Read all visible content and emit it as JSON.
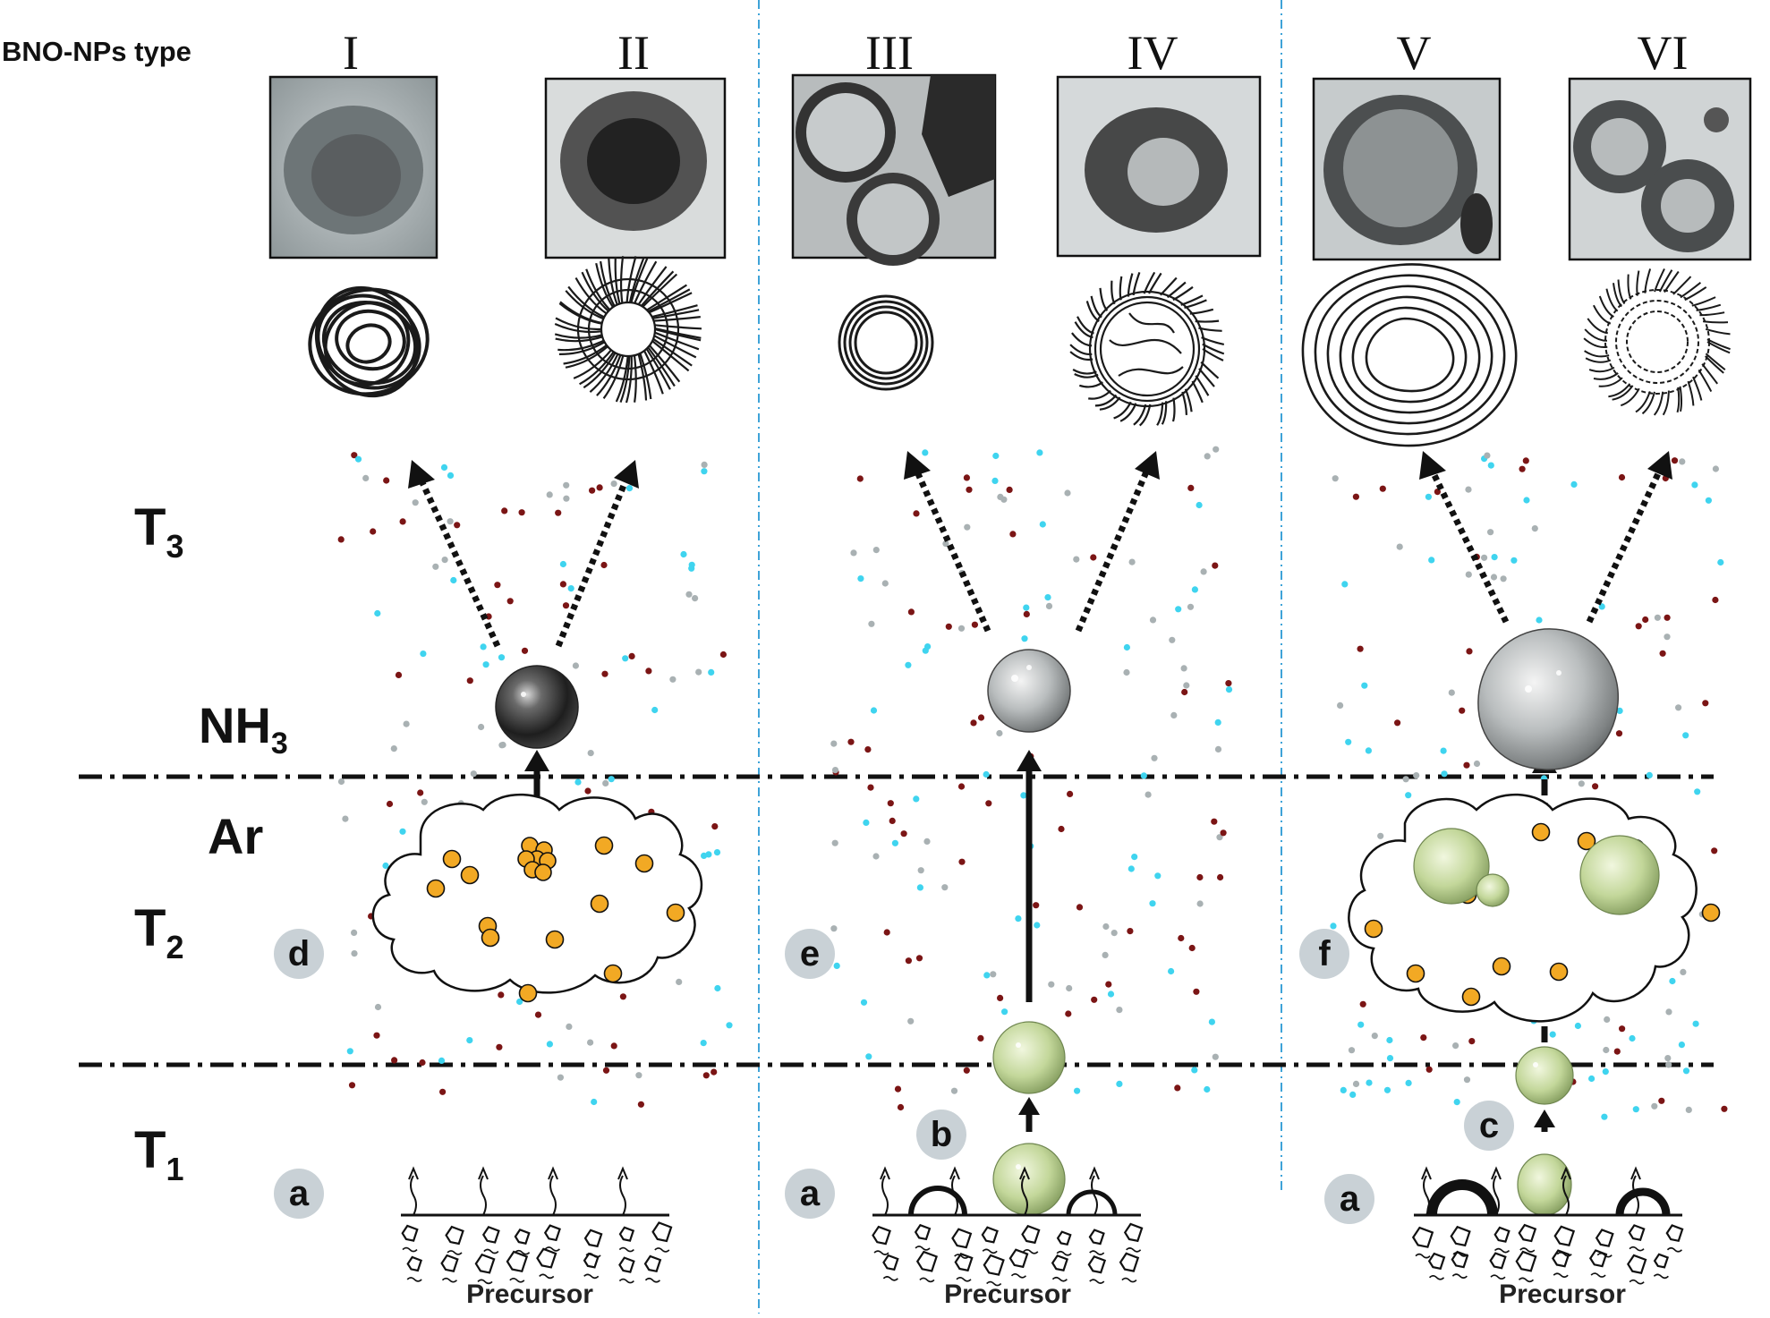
{
  "header": {
    "label": "BNO-NPs type"
  },
  "types": [
    "I",
    "II",
    "III",
    "IV",
    "V",
    "VI"
  ],
  "temperatures": {
    "t3": {
      "base": "T",
      "sub": "3"
    },
    "t2": {
      "base": "T",
      "sub": "2"
    },
    "t1": {
      "base": "T",
      "sub": "1"
    }
  },
  "gases": {
    "nh3": {
      "base": "NH",
      "sub": "3"
    },
    "ar": "Ar"
  },
  "steps": {
    "a1": "a",
    "a2": "a",
    "a3": "a",
    "b": "b",
    "c": "c",
    "d": "d",
    "e": "e",
    "f": "f"
  },
  "precursor": [
    "Precursor",
    "Precursor",
    "Precursor"
  ],
  "colors": {
    "dot_red": "#7b1515",
    "dot_cyan": "#3fd4ef",
    "dot_gray": "#a9b1b3",
    "nucleus_orange": "#f2a924",
    "droplet_green": "#b7cf8a",
    "divider_blue": "#3ea3d8"
  },
  "icons": [
    "tem-micrograph",
    "shell-schematic",
    "nanoparticle-sphere",
    "droplet",
    "cloud",
    "arrow"
  ]
}
